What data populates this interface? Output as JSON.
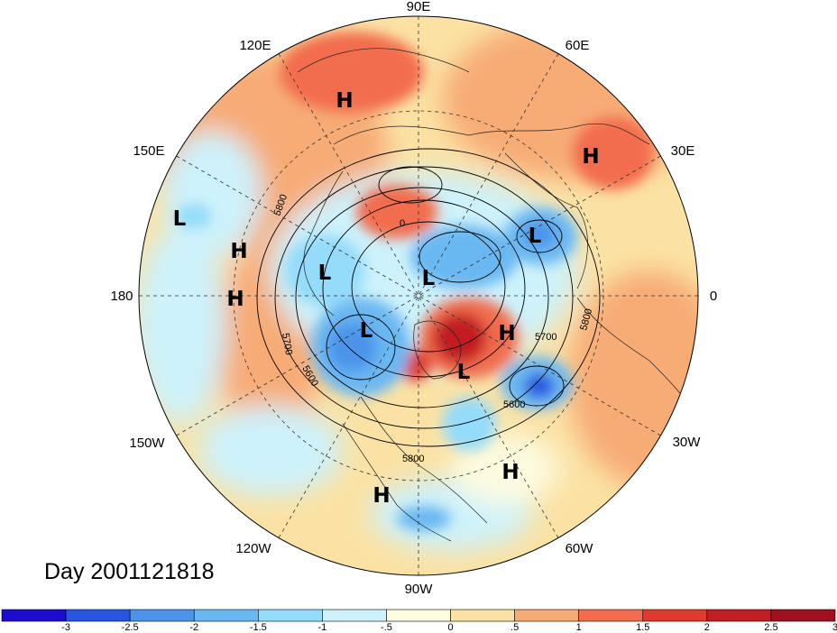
{
  "title": "Day 2001121818",
  "longitude_labels": [
    {
      "id": "90e",
      "text": "90E"
    },
    {
      "id": "60e",
      "text": "60E"
    },
    {
      "id": "30e",
      "text": "30E"
    },
    {
      "id": "0",
      "text": "0"
    },
    {
      "id": "30w",
      "text": "30W"
    },
    {
      "id": "60w",
      "text": "60W"
    },
    {
      "id": "90w",
      "text": "90W"
    },
    {
      "id": "120w",
      "text": "120W"
    },
    {
      "id": "150w",
      "text": "150W"
    },
    {
      "id": "180",
      "text": "180"
    },
    {
      "id": "150e",
      "text": "150E"
    },
    {
      "id": "120e",
      "text": "120E"
    }
  ],
  "pressure_centers": [
    {
      "type": "H",
      "name": "high-over-siberia"
    },
    {
      "type": "H",
      "name": "high-over-central-asia"
    },
    {
      "type": "H",
      "name": "high-over-pacific-north"
    },
    {
      "type": "H",
      "name": "high-over-pacific-south"
    },
    {
      "type": "H",
      "name": "high-over-greenland"
    },
    {
      "type": "H",
      "name": "high-over-mexico"
    },
    {
      "type": "H",
      "name": "high-over-atlantic"
    },
    {
      "type": "L",
      "name": "low-over-western-pacific"
    },
    {
      "type": "L",
      "name": "low-over-barents"
    },
    {
      "type": "L",
      "name": "low-over-arctic-center"
    },
    {
      "type": "L",
      "name": "low-over-bering"
    },
    {
      "type": "L",
      "name": "low-over-alaska"
    },
    {
      "type": "L",
      "name": "low-over-hudson-bay"
    }
  ],
  "contour_labels": [
    "5800",
    "5700",
    "5600",
    "5800",
    "5700",
    "5600",
    "5800",
    "0"
  ],
  "colorbar": {
    "colors": [
      "#1c0ccf",
      "#2755e1",
      "#4b94ea",
      "#6ab8f2",
      "#94dcfa",
      "#cdf2fb",
      "#fdfbe0",
      "#fbe2a4",
      "#f7ab74",
      "#f26d4d",
      "#e03a2e",
      "#c21f23",
      "#9d1120"
    ],
    "labels": [
      "-3",
      "-2.5",
      "-2",
      "-1.5",
      "-1",
      "-.5",
      "0",
      ".5",
      "1",
      "1.5",
      "2",
      "2.5",
      "3"
    ]
  }
}
